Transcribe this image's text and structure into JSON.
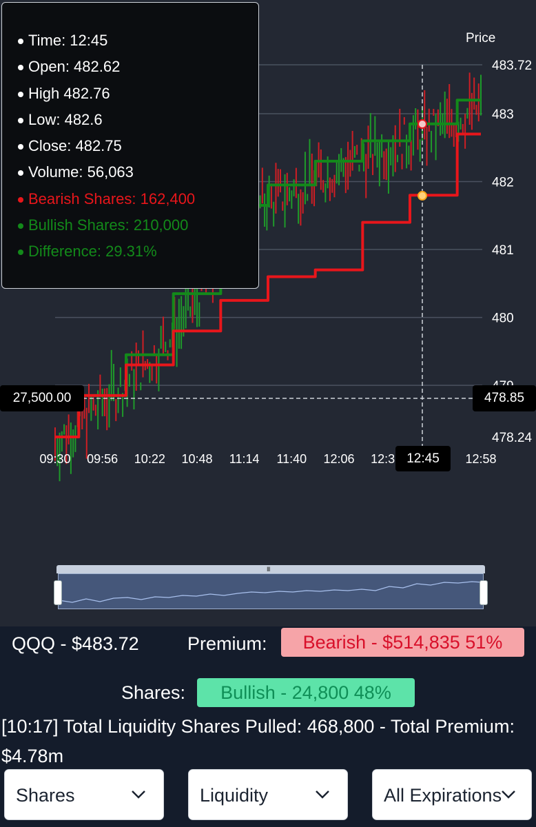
{
  "chart": {
    "axis_title": "Price",
    "price_ticks": [
      "483.72",
      "483",
      "482",
      "481",
      "480",
      "479",
      "478.24"
    ],
    "time_ticks": [
      "09:30",
      "09:56",
      "10:22",
      "10:48",
      "11:14",
      "11:40",
      "12:06",
      "12:32",
      "12:45",
      "12:58"
    ],
    "left_badge": "27,500.00",
    "right_badge": "478.85",
    "time_badge": "12:45",
    "colors": {
      "bullish": "#138a1a",
      "bearish": "#e8161b",
      "candle_up": "#1f9a2a",
      "candle_down": "#cf1e24",
      "grid": "#4b5260",
      "crosshair": "#d0d4da"
    }
  },
  "chart_data": {
    "type": "line",
    "ylim": [
      478.24,
      483.72
    ],
    "x": [
      "09:30",
      "09:56",
      "10:22",
      "10:48",
      "11:14",
      "11:40",
      "12:06",
      "12:32",
      "12:45",
      "12:58"
    ],
    "series": [
      {
        "name": "Bullish Shares",
        "values": [
          478.24,
          478.85,
          479.45,
          480.35,
          481.65,
          481.95,
          482.3,
          482.6,
          482.85,
          483.2
        ]
      },
      {
        "name": "Bearish Shares",
        "values": [
          478.24,
          478.85,
          479.3,
          479.8,
          480.25,
          480.6,
          480.7,
          481.4,
          481.8,
          482.7
        ]
      }
    ]
  },
  "tooltip": {
    "time": "Time: 12:45",
    "open": "Open: 482.62",
    "high": "High 482.76",
    "low": "Low: 482.6",
    "close": "Close: 482.75",
    "volume": "Volume: 56,063",
    "bearish": "Bearish Shares: 162,400",
    "bullish": "Bullish Shares: 210,000",
    "difference": "Difference: 29.31%"
  },
  "summary": {
    "ticker": "QQQ - $483.72",
    "premium_label": "Premium:",
    "premium_value": "Bearish - $514,835 51%",
    "shares_label": "Shares:",
    "shares_value": "Bullish - 24,800 48%",
    "liquidity": "[10:17] Total Liquidity Shares Pulled: 468,800 - Total Premium: $4.78m"
  },
  "controls": {
    "dropdown1": "Shares",
    "dropdown2": "Liquidity",
    "dropdown3": "All Expirations"
  }
}
